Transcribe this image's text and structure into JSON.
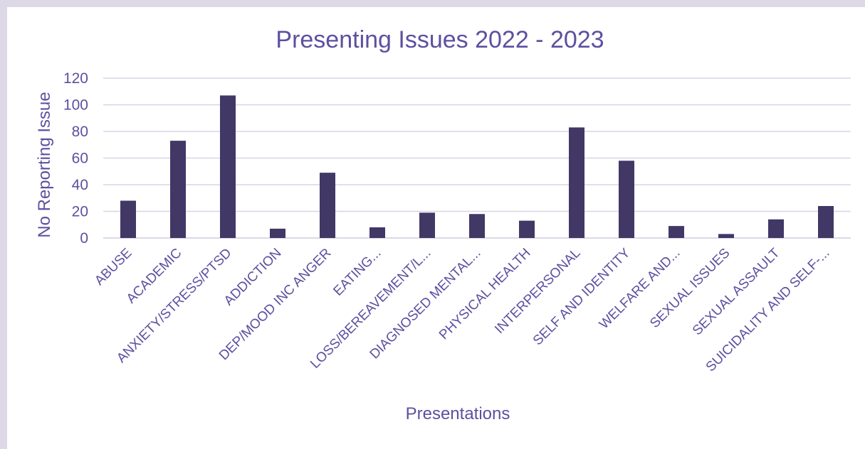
{
  "colors": {
    "bar": "#413866",
    "text": "#5c50a0",
    "grid": "#d8d4e6",
    "frame": "#dcd8e6"
  },
  "chart_data": {
    "type": "bar",
    "title": "Presenting Issues 2022 - 2023",
    "xlabel": "Presentations",
    "ylabel": "No Reporting Issue",
    "ylim": [
      0,
      120
    ],
    "yticks": [
      0,
      20,
      40,
      60,
      80,
      100,
      120
    ],
    "grid": true,
    "categories": [
      "ABUSE",
      "ACADEMIC",
      "ANXIETY/STRESS/PTSD",
      "ADDICTION",
      "DEP/MOOD INC ANGER",
      "EATING...",
      "LOSS/BEREAVEMENT/L...",
      "DIAGNOSED MENTAL...",
      "PHYSICAL HEALTH",
      "INTERPERSONAL",
      "SELF AND IDENTITY",
      "WELFARE AND...",
      "SEXUAL ISSUES",
      "SEXUAL ASSAULT",
      "SUICIDALITY AND SELF-..."
    ],
    "values": [
      28,
      73,
      107,
      7,
      49,
      8,
      19,
      18,
      13,
      83,
      58,
      9,
      3,
      14,
      24
    ]
  }
}
